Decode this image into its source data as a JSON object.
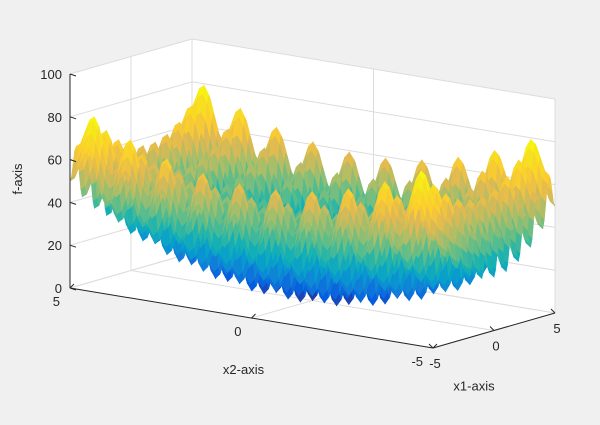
{
  "chart_data": {
    "type": "surface",
    "function": "f(x1,x2) = 20 + x1^2 + x2^2 - 10*(cos(2*pi*x1) + cos(2*pi*x2))",
    "xlabel": "x1-axis",
    "ylabel": "x2-axis",
    "zlabel": "f-axis",
    "xlim": [
      -5,
      5
    ],
    "ylim": [
      -5,
      5
    ],
    "zlim": [
      0,
      100
    ],
    "x_ticks": [
      "-5",
      "0",
      "5"
    ],
    "y_ticks": [
      "-5",
      "0",
      "5"
    ],
    "z_ticks": [
      "0",
      "20",
      "40",
      "60",
      "80",
      "100"
    ],
    "view": {
      "azimuth": -37.5,
      "elevation": 30
    },
    "grid": true,
    "colormap": "parula",
    "colors": {
      "background": "#f0f0f0",
      "axes_box": "#ffffff",
      "grid": "#dcdcdc",
      "axis_line": "#262626"
    }
  }
}
